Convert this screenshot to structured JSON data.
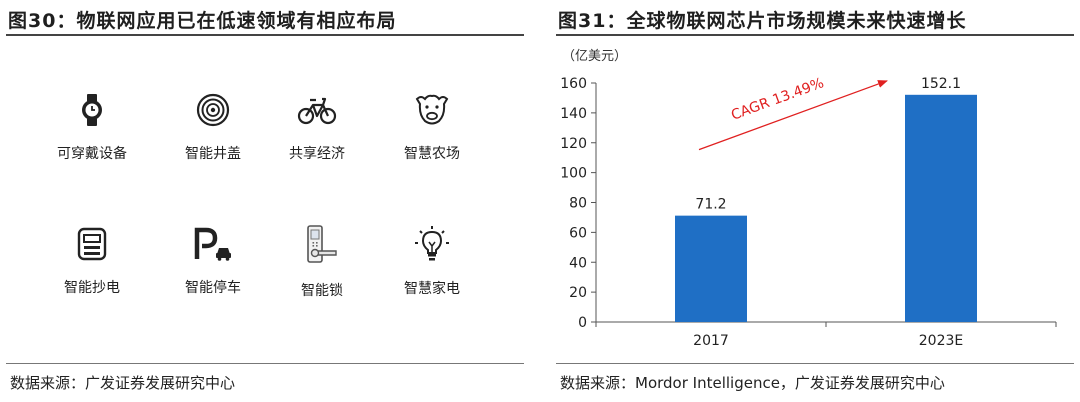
{
  "left": {
    "title": "图30：物联网应用已在低速领域有相应布局",
    "items": [
      {
        "label": "可穿戴设备",
        "icon": "smartwatch-icon"
      },
      {
        "label": "智能井盖",
        "icon": "manhole-cover-icon"
      },
      {
        "label": "共享经济",
        "icon": "bicycle-icon"
      },
      {
        "label": "智慧农场",
        "icon": "cow-icon"
      },
      {
        "label": "智能抄电",
        "icon": "electric-meter-icon"
      },
      {
        "label": "智能停车",
        "icon": "parking-icon"
      },
      {
        "label": "智能锁",
        "icon": "door-lock-icon"
      },
      {
        "label": "智慧家电",
        "icon": "light-bulb-icon"
      }
    ],
    "source": "数据来源：广发证券发展研究中心"
  },
  "right": {
    "title": "图31：全球物联网芯片市场规模未来快速增长",
    "source": "数据来源：Mordor Intelligence，广发证券发展研究中心"
  },
  "chart_data": {
    "type": "bar",
    "categories": [
      "2017",
      "2023E"
    ],
    "values": [
      71.2,
      152.1
    ],
    "value_labels": [
      "71.2",
      "152.1"
    ],
    "unit_label": "（亿美元）",
    "ylim": [
      0,
      160
    ],
    "yticks": [
      0,
      20,
      40,
      60,
      80,
      100,
      120,
      140,
      160
    ],
    "bar_color": "#1f6fc5",
    "annotation": {
      "text": "CAGR 13.49%",
      "color": "#e02020"
    },
    "grid": false,
    "legend": "none"
  }
}
